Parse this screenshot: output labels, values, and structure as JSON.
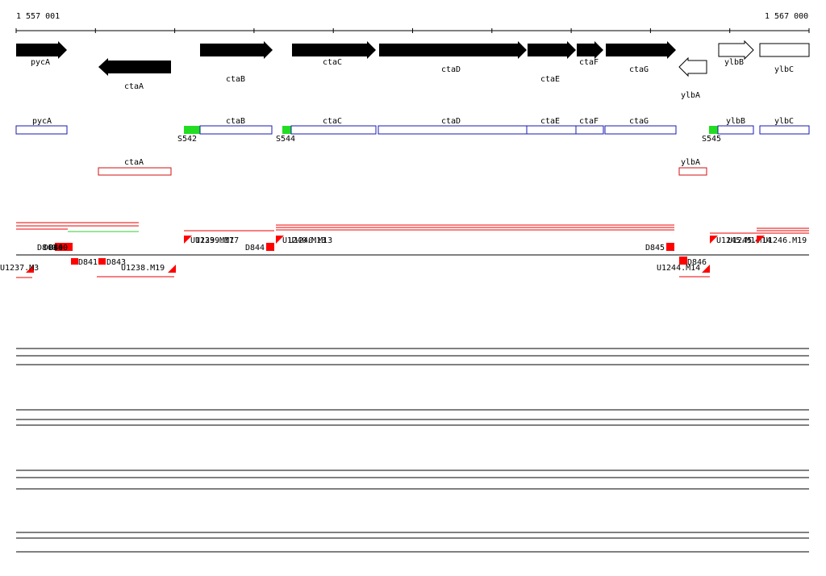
{
  "ruler": {
    "start_label": "1 557 001",
    "end_label": "1 567 000"
  },
  "genes_arrows": [
    {
      "name": "pycA"
    },
    {
      "name": "ctaA"
    },
    {
      "name": "ctaB"
    },
    {
      "name": "ctaC"
    },
    {
      "name": "ctaD"
    },
    {
      "name": "ctaE"
    },
    {
      "name": "ctaF"
    },
    {
      "name": "ctaG"
    },
    {
      "name": "ylbA"
    },
    {
      "name": "ylbB"
    },
    {
      "name": "ylbC"
    }
  ],
  "genes_boxes": [
    {
      "name": "pycA"
    },
    {
      "name": "ctaB"
    },
    {
      "name": "ctaC"
    },
    {
      "name": "ctaD"
    },
    {
      "name": "ctaE"
    },
    {
      "name": "ctaF"
    },
    {
      "name": "ctaG"
    },
    {
      "name": "ylbB"
    },
    {
      "name": "ylbC"
    },
    {
      "name": "ctaA"
    },
    {
      "name": "ylbA"
    }
  ],
  "sites": [
    "S542",
    "S544",
    "S545"
  ],
  "segments": {
    "d840": "D840",
    "d841": "D841",
    "d843": "D843",
    "d844": "D844",
    "d845": "D845",
    "d846": "D846",
    "u1237": "U1237.M3",
    "u1238": "U1238.M19",
    "u1239": "U1239.M17",
    "u1240": "U1240.M13",
    "u1244": "U1244.M14",
    "u1245": "U1245.M14",
    "u1246": "U1246.M19"
  },
  "colors": {
    "arrow_fill": "#000000",
    "box_blue": "#1a1ab4",
    "box_red": "#d01010",
    "site_green": "#22dd22",
    "segment_red": "#ff0000"
  }
}
